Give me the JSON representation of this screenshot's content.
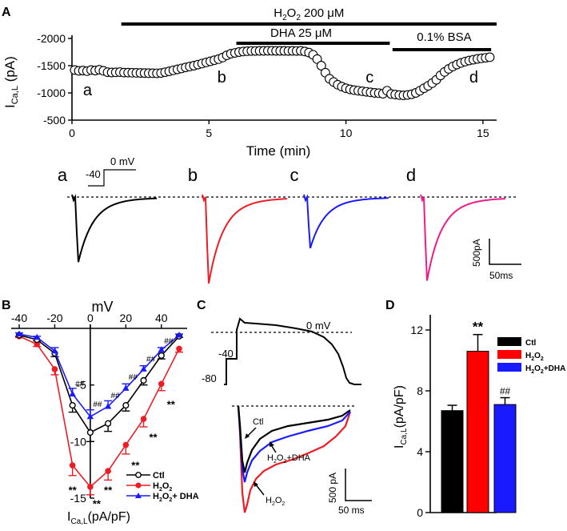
{
  "chart_data": [
    {
      "panel": "A",
      "type": "scatter",
      "marker": "open-circle",
      "xlabel": "Time (min)",
      "ylabel_main": "I",
      "ylabel_sub": "Ca,L",
      "ylabel_unit": " (pA)",
      "xlim": [
        0,
        15.5
      ],
      "ylim": [
        -500,
        -2100
      ],
      "xticks": [
        0,
        5,
        10,
        15
      ],
      "xtick_labels": [
        "0",
        "5",
        "10",
        "15"
      ],
      "yticks": [
        -2000,
        -1500,
        -1000,
        -500
      ],
      "ytick_labels": [
        "-2000",
        "-1500",
        "-1000",
        "-500"
      ],
      "bars": [
        {
          "label_main": "H",
          "label_sub": "2",
          "label_main2": "O",
          "label_sub2": "2",
          "label_rest": " 200 μM",
          "start": 1.8,
          "end": 15.5
        },
        {
          "label": "DHA 25 μM",
          "start": 6.0,
          "end": 11.6
        },
        {
          "label": "0.1% BSA",
          "start": 11.7,
          "end": 15.3
        }
      ],
      "markers": [
        {
          "label": "a",
          "x": 0.8
        },
        {
          "label": "b",
          "x": 5.7
        },
        {
          "label": "c",
          "x": 11.1
        },
        {
          "label": "d",
          "x": 14.9
        }
      ],
      "points": [
        [
          0.1,
          -1420
        ],
        [
          0.25,
          -1405
        ],
        [
          0.4,
          -1410
        ],
        [
          0.55,
          -1400
        ],
        [
          0.7,
          -1420
        ],
        [
          0.85,
          -1410
        ],
        [
          1.0,
          -1425
        ],
        [
          1.15,
          -1405
        ],
        [
          1.3,
          -1380
        ],
        [
          1.45,
          -1375
        ],
        [
          1.6,
          -1378
        ],
        [
          1.75,
          -1382
        ],
        [
          1.9,
          -1372
        ],
        [
          2.05,
          -1372
        ],
        [
          2.2,
          -1370
        ],
        [
          2.35,
          -1368
        ],
        [
          2.5,
          -1366
        ],
        [
          2.65,
          -1364
        ],
        [
          2.8,
          -1362
        ],
        [
          2.95,
          -1361
        ],
        [
          3.1,
          -1360
        ],
        [
          3.25,
          -1365
        ],
        [
          3.4,
          -1380
        ],
        [
          3.55,
          -1396
        ],
        [
          3.7,
          -1415
        ],
        [
          3.85,
          -1432
        ],
        [
          4.0,
          -1450
        ],
        [
          4.15,
          -1468
        ],
        [
          4.3,
          -1484
        ],
        [
          4.45,
          -1500
        ],
        [
          4.6,
          -1520
        ],
        [
          4.75,
          -1540
        ],
        [
          4.9,
          -1560
        ],
        [
          5.05,
          -1580
        ],
        [
          5.2,
          -1600
        ],
        [
          5.35,
          -1620
        ],
        [
          5.5,
          -1650
        ],
        [
          5.65,
          -1690
        ],
        [
          5.8,
          -1720
        ],
        [
          5.95,
          -1735
        ],
        [
          6.1,
          -1750
        ],
        [
          6.25,
          -1760
        ],
        [
          6.4,
          -1765
        ],
        [
          6.55,
          -1770
        ],
        [
          6.7,
          -1770
        ],
        [
          6.85,
          -1772
        ],
        [
          7.0,
          -1772
        ],
        [
          7.15,
          -1774
        ],
        [
          7.3,
          -1774
        ],
        [
          7.45,
          -1772
        ],
        [
          7.6,
          -1772
        ],
        [
          7.75,
          -1772
        ],
        [
          7.9,
          -1770
        ],
        [
          8.05,
          -1772
        ],
        [
          8.2,
          -1770
        ],
        [
          8.35,
          -1772
        ],
        [
          8.5,
          -1760
        ],
        [
          8.65,
          -1740
        ],
        [
          8.8,
          -1700
        ],
        [
          8.95,
          -1620
        ],
        [
          9.1,
          -1500
        ],
        [
          9.25,
          -1370
        ],
        [
          9.4,
          -1260
        ],
        [
          9.55,
          -1200
        ],
        [
          9.7,
          -1150
        ],
        [
          9.85,
          -1115
        ],
        [
          10.0,
          -1085
        ],
        [
          10.15,
          -1065
        ],
        [
          10.3,
          -1050
        ],
        [
          10.45,
          -1040
        ],
        [
          10.6,
          -1030
        ],
        [
          10.75,
          -1020
        ],
        [
          10.9,
          -1010
        ],
        [
          11.05,
          -1000
        ],
        [
          11.2,
          -995
        ],
        [
          11.35,
          -985
        ],
        [
          11.5,
          -1040
        ],
        [
          11.65,
          -980
        ],
        [
          11.8,
          -970
        ],
        [
          11.95,
          -960
        ],
        [
          12.1,
          -955
        ],
        [
          12.25,
          -962
        ],
        [
          12.4,
          -975
        ],
        [
          12.55,
          -1000
        ],
        [
          12.7,
          -1040
        ],
        [
          12.85,
          -1085
        ],
        [
          13.0,
          -1130
        ],
        [
          13.15,
          -1180
        ],
        [
          13.3,
          -1240
        ],
        [
          13.45,
          -1320
        ],
        [
          13.6,
          -1385
        ],
        [
          13.75,
          -1440
        ],
        [
          13.9,
          -1485
        ],
        [
          14.05,
          -1520
        ],
        [
          14.2,
          -1550
        ],
        [
          14.35,
          -1575
        ],
        [
          14.5,
          -1595
        ],
        [
          14.65,
          -1610
        ],
        [
          14.8,
          -1625
        ],
        [
          14.95,
          -1635
        ],
        [
          15.1,
          -1645
        ],
        [
          15.25,
          -1655
        ]
      ]
    },
    {
      "panel": "traces",
      "type": "line",
      "protocol_label": "0 mV",
      "protocol_hold": "-40",
      "scale_y": "500pA",
      "scale_x": "50ms",
      "traces": [
        {
          "label": "a",
          "color": "#000000",
          "peak": 0.7
        },
        {
          "label": "b",
          "color": "#ee1c24",
          "peak": 0.93
        },
        {
          "label": "c",
          "color": "#1a1aff",
          "peak": 0.55
        },
        {
          "label": "d",
          "color": "#ee1c8a",
          "peak": 0.9
        }
      ]
    },
    {
      "panel": "B",
      "type": "line",
      "xlabel": "mV",
      "ylabel_main": "I",
      "ylabel_sub": "Ca,L",
      "ylabel_unit": "(pA/pF)",
      "xlim": [
        -45,
        55
      ],
      "ylim": [
        0,
        -15
      ],
      "xticks": [
        -40,
        -20,
        0,
        20,
        40
      ],
      "xtick_labels": [
        "-40",
        "-20",
        "0",
        "20",
        "40"
      ],
      "yticks": [
        -5,
        -10,
        -15
      ],
      "ytick_labels": [
        "-5",
        "-10",
        "-15"
      ],
      "x": [
        -40,
        -30,
        -20,
        -10,
        0,
        10,
        20,
        30,
        40,
        50
      ],
      "series": [
        {
          "name": "Ctl",
          "color": "#000000",
          "marker": "open-circle",
          "values": [
            -0.6,
            -1.0,
            -2.2,
            -6.8,
            -9.2,
            -8.4,
            -6.8,
            -4.6,
            -2.4,
            -0.7
          ],
          "err": [
            0.1,
            0.1,
            0.3,
            0.6,
            0.8,
            0.7,
            0.5,
            0.4,
            0.3,
            0.1
          ]
        },
        {
          "name_main": "H",
          "name_sub": "2",
          "name_main2": "O",
          "name_sub2": "2",
          "color": "#ee1c24",
          "marker": "filled-circle",
          "values": [
            -0.7,
            -1.4,
            -3.6,
            -12.1,
            -14.0,
            -12.6,
            -10.3,
            -8.0,
            -4.9,
            -1.8
          ],
          "err": [
            0.1,
            0.2,
            0.5,
            0.9,
            0.7,
            0.8,
            0.8,
            0.7,
            0.6,
            0.3
          ]
        },
        {
          "name_main": "H",
          "name_sub": "2",
          "name_main2": "O",
          "name_sub2": "2",
          "name_rest": "+ DHA",
          "color": "#1a1aff",
          "marker": "filled-triangle",
          "values": [
            -0.5,
            -0.8,
            -2.0,
            -5.8,
            -7.8,
            -6.9,
            -5.3,
            -3.6,
            -1.9,
            -0.6
          ],
          "err": [
            0.1,
            0.1,
            0.3,
            0.5,
            0.6,
            0.5,
            0.4,
            0.3,
            0.2,
            0.1
          ]
        }
      ],
      "annotations_star": [
        {
          "text": "**",
          "x": -10,
          "y": -14.2
        },
        {
          "text": "**",
          "x": 0,
          "y": -15.4
        },
        {
          "text": "**",
          "x": 10,
          "y": -14.2
        },
        {
          "text": "**",
          "x": 20,
          "y": -12.0
        },
        {
          "text": "**",
          "x": 30,
          "y": -9.5
        },
        {
          "text": "**",
          "x": 40,
          "y": -6.6
        }
      ],
      "annotations_hash": [
        {
          "text": "##",
          "x": -10,
          "y": -5.0
        },
        {
          "text": "##",
          "x": 0,
          "y": -6.8
        },
        {
          "text": "##",
          "x": 10,
          "y": -6.0
        },
        {
          "text": "##",
          "x": 20,
          "y": -4.4
        },
        {
          "text": "##",
          "x": 30,
          "y": -2.8
        },
        {
          "text": "##",
          "x": 40,
          "y": -1.2
        }
      ]
    },
    {
      "panel": "C",
      "type": "line",
      "ap_label_0": "0 mV",
      "ap_label_m40": "-40",
      "ap_label_m80": "-80",
      "scale_y": "500 pA",
      "scale_x": "50 ms",
      "labels": [
        {
          "text": "Ctl",
          "color": "#000000"
        },
        {
          "text_main": "H",
          "text_sub": "2",
          "text_main2": "O",
          "text_sub2": "2",
          "text_rest": "+DHA",
          "color": "#1a1aff"
        },
        {
          "text_main": "H",
          "text_sub": "2",
          "text_main2": "O",
          "text_sub2": "2",
          "color": "#ee1c24"
        }
      ]
    },
    {
      "panel": "D",
      "type": "bar",
      "ylabel_main": "I",
      "ylabel_sub": "Ca,L",
      "ylabel_unit": "(pA/pF)",
      "ylim": [
        0,
        13
      ],
      "yticks": [
        0,
        4,
        8,
        12
      ],
      "ytick_labels": [
        "0",
        "4",
        "8",
        "12"
      ],
      "bars": [
        {
          "name": "Ctl",
          "color": "#000000",
          "value": 6.7,
          "err": 0.35
        },
        {
          "name_main": "H",
          "name_sub": "2",
          "name_main2": "O",
          "name_sub2": "2",
          "color": "#ff0000",
          "value": 10.6,
          "err": 1.1,
          "annot": "**"
        },
        {
          "name_main": "H",
          "name_sub": "2",
          "name_main2": "O",
          "name_sub2": "2",
          "name_rest": "+DHA",
          "color": "#1a1aff",
          "value": 7.1,
          "err": 0.45,
          "annot": "##"
        }
      ]
    }
  ],
  "panel_labels": {
    "A": "A",
    "B": "B",
    "C": "C",
    "D": "D"
  }
}
